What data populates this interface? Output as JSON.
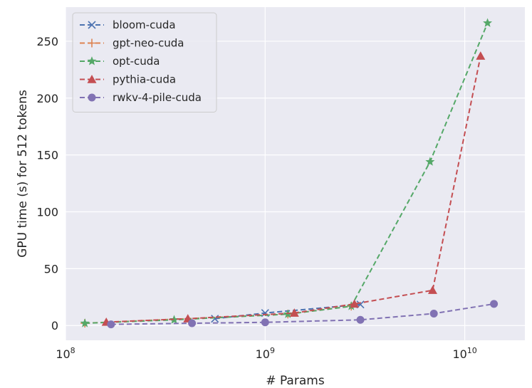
{
  "chart_data": {
    "type": "line",
    "xlabel": "# Params",
    "ylabel": "GPU time (s) for 512 tokens",
    "xscale": "log",
    "xlim": [
      100000000,
      20000000000
    ],
    "ylim": [
      -13,
      280
    ],
    "x_ticks": [
      {
        "value": 100000000,
        "base": "10",
        "exp": "8"
      },
      {
        "value": 1000000000,
        "base": "10",
        "exp": "9"
      },
      {
        "value": 10000000000,
        "base": "10",
        "exp": "10"
      }
    ],
    "y_ticks": [
      0,
      50,
      100,
      150,
      200,
      250
    ],
    "grid": true,
    "legend_position": "top-left",
    "colors": {
      "background": "#eaeaf2",
      "grid": "#ffffff",
      "bloom": "#4c72b0",
      "gpt_neo": "#dd8452",
      "opt": "#55a868",
      "pythia": "#c44e52",
      "rwkv": "#8172b3"
    },
    "series": [
      {
        "name": "bloom-cuda",
        "color": "#4c72b0",
        "marker": "x",
        "x": [
          560000000,
          1000000000,
          3000000000
        ],
        "y": [
          6,
          11,
          18.5
        ]
      },
      {
        "name": "gpt-neo-cuda",
        "color": "#dd8452",
        "marker": "plus",
        "x": [
          125000000,
          1300000000,
          2700000000
        ],
        "y": [
          2,
          10,
          17
        ]
      },
      {
        "name": "opt-cuda",
        "color": "#55a868",
        "marker": "star",
        "x": [
          125000000,
          350000000,
          1300000000,
          2700000000,
          6700000000,
          13000000000
        ],
        "y": [
          2,
          5,
          10,
          17,
          144,
          266
        ]
      },
      {
        "name": "pythia-cuda",
        "color": "#c44e52",
        "marker": "triangle",
        "x": [
          160000000,
          410000000,
          1400000000,
          2800000000,
          6900000000,
          12000000000
        ],
        "y": [
          3,
          6,
          11,
          19,
          31,
          237
        ]
      },
      {
        "name": "rwkv-4-pile-cuda",
        "color": "#8172b3",
        "marker": "circle",
        "x": [
          169000000,
          430000000,
          1000000000,
          3000000000,
          7000000000,
          14000000000
        ],
        "y": [
          1,
          2,
          2.8,
          5,
          10.5,
          19
        ]
      }
    ]
  }
}
